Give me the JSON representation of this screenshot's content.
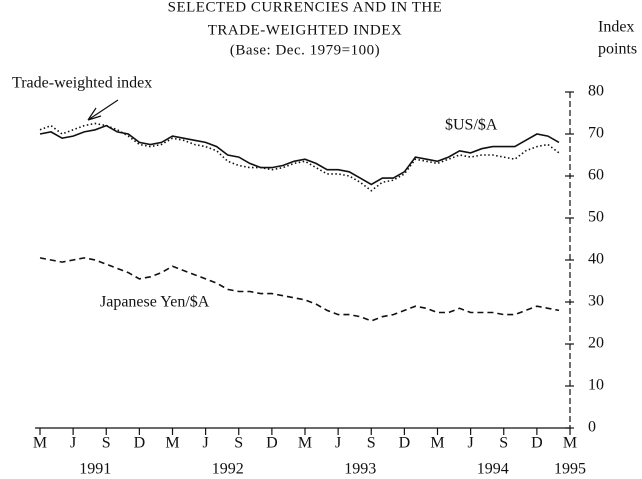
{
  "chart_data": {
    "type": "line",
    "title": [
      "SELECTED CURRENCIES AND IN THE",
      "TRADE-WEIGHTED INDEX",
      "(Base: Dec. 1979=100)"
    ],
    "y_axis_label": [
      "Index",
      "points"
    ],
    "categories": [
      "M",
      null,
      null,
      "J",
      null,
      null,
      "S",
      null,
      null,
      "D",
      null,
      null,
      "M",
      null,
      null,
      "J",
      null,
      null,
      "S",
      null,
      null,
      "D",
      null,
      null,
      "M",
      null,
      null,
      "J",
      null,
      null,
      "S",
      null,
      null,
      "D",
      null,
      null,
      "M",
      null,
      null,
      "J",
      null,
      null,
      "S",
      null,
      null,
      "D",
      null,
      null,
      "M"
    ],
    "year_labels": [
      "1991",
      "1992",
      "1993",
      "1994",
      "1995"
    ],
    "series": [
      {
        "name": "$US/$A",
        "color": "#111",
        "style": "solid",
        "values": [
          70,
          70.5,
          69,
          69.5,
          70.5,
          71,
          72,
          70.5,
          70,
          68,
          67.5,
          68,
          69.5,
          69,
          68.5,
          68,
          67,
          65,
          64.5,
          63,
          62,
          62,
          62.5,
          63.5,
          64,
          63,
          61.5,
          61.5,
          61,
          59.5,
          58,
          59.5,
          59.5,
          61,
          64.5,
          64,
          63.5,
          64.5,
          66,
          65.5,
          66.5,
          67,
          67,
          67,
          68.5,
          70,
          69.5,
          68,
          null
        ]
      },
      {
        "name": "Trade-weighted index",
        "color": "#111",
        "style": "dotted",
        "values": [
          71,
          72,
          70,
          71,
          72,
          72.5,
          72,
          71,
          69.5,
          67.5,
          67,
          67.5,
          69,
          68.5,
          67.5,
          67,
          66,
          63.5,
          62.5,
          62,
          62,
          61.5,
          62,
          63,
          63.5,
          62,
          60.5,
          60.5,
          60,
          58.5,
          56.5,
          58.5,
          59,
          60.5,
          64,
          63.5,
          63,
          64,
          65,
          64.5,
          65,
          65,
          64.5,
          64,
          66,
          67,
          67.5,
          65.5,
          null
        ]
      },
      {
        "name": "Japanese Yen/$A",
        "color": "#111",
        "style": "dashed",
        "values": [
          40.5,
          40,
          39.5,
          40,
          40.5,
          40,
          39,
          38,
          37,
          35.5,
          36,
          37,
          38.5,
          37.5,
          36.5,
          35.5,
          34.5,
          33,
          32.5,
          32.5,
          32,
          32,
          31.5,
          31,
          30.5,
          29.5,
          28,
          27,
          27,
          26.5,
          25.5,
          26.5,
          27,
          28,
          29,
          28.5,
          27.5,
          27.5,
          28.5,
          27.5,
          27.5,
          27.5,
          27,
          27,
          28,
          29,
          28.5,
          28,
          null
        ]
      }
    ],
    "ylim": [
      0,
      80
    ],
    "yticks": [
      0,
      10,
      20,
      30,
      40,
      50,
      60,
      70,
      80
    ]
  }
}
